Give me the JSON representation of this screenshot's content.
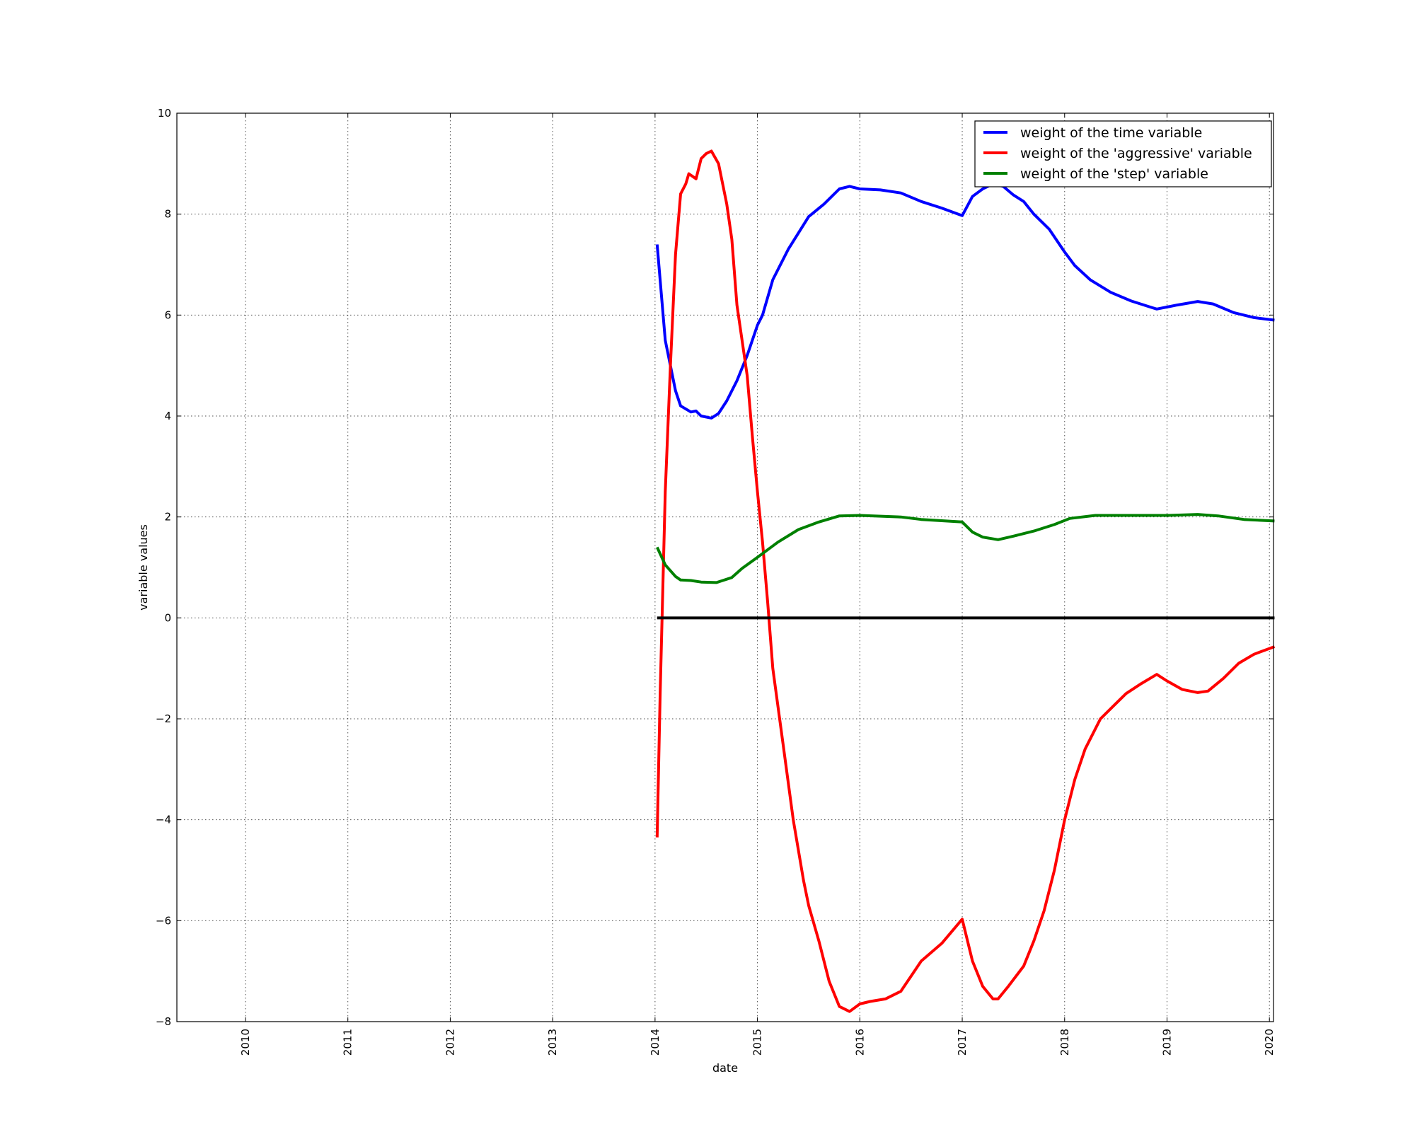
{
  "chart_data": {
    "type": "line",
    "title": "",
    "xlabel": "date",
    "ylabel": "variable values",
    "xlim": [
      2009.33,
      2020.04
    ],
    "ylim": [
      -8,
      10
    ],
    "x_ticks": [
      "2010",
      "2011",
      "2012",
      "2013",
      "2014",
      "2015",
      "2016",
      "2017",
      "2018",
      "2019",
      "2020"
    ],
    "y_ticks": [
      -8,
      -6,
      -4,
      -2,
      0,
      2,
      4,
      6,
      8,
      10
    ],
    "y_tick_labels": [
      "−8",
      "−6",
      "−4",
      "−2",
      "0",
      "2",
      "4",
      "6",
      "8",
      "10"
    ],
    "grid": true,
    "legend_position": "top-right",
    "series": [
      {
        "name": "weight of the time variable",
        "color": "#0000ff",
        "x": [
          2014.02,
          2014.1,
          2014.2,
          2014.25,
          2014.35,
          2014.4,
          2014.45,
          2014.55,
          2014.62,
          2014.7,
          2014.8,
          2014.9,
          2015.0,
          2015.05,
          2015.15,
          2015.3,
          2015.5,
          2015.65,
          2015.8,
          2015.9,
          2016.0,
          2016.2,
          2016.4,
          2016.6,
          2016.8,
          2017.0,
          2017.1,
          2017.2,
          2017.3,
          2017.4,
          2017.5,
          2017.6,
          2017.7,
          2017.85,
          2018.0,
          2018.1,
          2018.25,
          2018.45,
          2018.65,
          2018.85,
          2018.9,
          2019.1,
          2019.3,
          2019.45,
          2019.65,
          2019.85,
          2020.05
        ],
        "y": [
          7.4,
          5.5,
          4.5,
          4.2,
          4.08,
          4.1,
          4.0,
          3.96,
          4.05,
          4.3,
          4.7,
          5.2,
          5.8,
          6.0,
          6.7,
          7.3,
          7.95,
          8.2,
          8.5,
          8.55,
          8.5,
          8.48,
          8.42,
          8.25,
          8.12,
          7.97,
          8.35,
          8.5,
          8.6,
          8.55,
          8.38,
          8.25,
          8.0,
          7.7,
          7.25,
          6.98,
          6.7,
          6.45,
          6.28,
          6.15,
          6.12,
          6.2,
          6.27,
          6.22,
          6.05,
          5.95,
          5.9
        ]
      },
      {
        "name": "weight of the 'aggressive' variable",
        "color": "#ff0000",
        "x": [
          2014.02,
          2014.05,
          2014.1,
          2014.15,
          2014.2,
          2014.25,
          2014.3,
          2014.33,
          2014.4,
          2014.45,
          2014.5,
          2014.55,
          2014.62,
          2014.7,
          2014.75,
          2014.8,
          2014.9,
          2014.95,
          2015.0,
          2015.05,
          2015.1,
          2015.15,
          2015.25,
          2015.35,
          2015.45,
          2015.5,
          2015.6,
          2015.7,
          2015.8,
          2015.9,
          2016.0,
          2016.1,
          2016.25,
          2016.4,
          2016.5,
          2016.6,
          2016.8,
          2017.0,
          2017.1,
          2017.2,
          2017.3,
          2017.35,
          2017.45,
          2017.6,
          2017.7,
          2017.8,
          2017.9,
          2018.0,
          2018.1,
          2018.2,
          2018.35,
          2018.5,
          2018.6,
          2018.75,
          2018.9,
          2019.0,
          2019.15,
          2019.3,
          2019.4,
          2019.55,
          2019.7,
          2019.85,
          2020.05
        ],
        "y": [
          -4.35,
          -1.5,
          2.5,
          5.0,
          7.2,
          8.4,
          8.6,
          8.8,
          8.7,
          9.1,
          9.2,
          9.25,
          9.0,
          8.2,
          7.5,
          6.2,
          4.8,
          3.6,
          2.5,
          1.5,
          0.3,
          -1.0,
          -2.5,
          -4.0,
          -5.2,
          -5.7,
          -6.4,
          -7.2,
          -7.7,
          -7.8,
          -7.65,
          -7.6,
          -7.55,
          -7.4,
          -7.1,
          -6.8,
          -6.45,
          -5.97,
          -6.8,
          -7.3,
          -7.55,
          -7.55,
          -7.3,
          -6.9,
          -6.4,
          -5.8,
          -5.0,
          -4.0,
          -3.2,
          -2.6,
          -2.0,
          -1.7,
          -1.5,
          -1.3,
          -1.12,
          -1.25,
          -1.42,
          -1.48,
          -1.45,
          -1.2,
          -0.9,
          -0.72,
          -0.57
        ]
      },
      {
        "name": "weight of the 'step' variable",
        "color": "#008000",
        "x": [
          2014.02,
          2014.1,
          2014.2,
          2014.25,
          2014.35,
          2014.45,
          2014.6,
          2014.75,
          2014.85,
          2015.0,
          2015.2,
          2015.4,
          2015.6,
          2015.8,
          2016.0,
          2016.4,
          2016.6,
          2017.0,
          2017.1,
          2017.2,
          2017.35,
          2017.5,
          2017.7,
          2017.9,
          2018.05,
          2018.3,
          2018.6,
          2019.0,
          2019.3,
          2019.5,
          2019.75,
          2020.05
        ],
        "y": [
          1.4,
          1.05,
          0.82,
          0.75,
          0.74,
          0.71,
          0.7,
          0.8,
          0.98,
          1.2,
          1.5,
          1.75,
          1.9,
          2.02,
          2.03,
          2.0,
          1.95,
          1.9,
          1.7,
          1.6,
          1.55,
          1.62,
          1.72,
          1.85,
          1.97,
          2.03,
          2.03,
          2.03,
          2.05,
          2.02,
          1.95,
          1.92
        ]
      }
    ],
    "reference_line": {
      "y": 0,
      "x": [
        2014.02,
        2020.05
      ],
      "color": "#000000"
    }
  }
}
